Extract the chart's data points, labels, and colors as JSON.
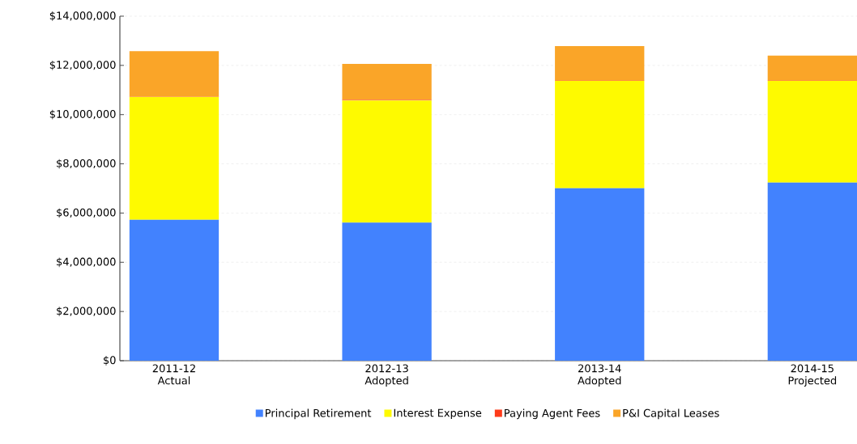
{
  "chart_data": {
    "type": "bar",
    "stacked": true,
    "categories": [
      "2011-12 Actual",
      "2012-13 Adopted",
      "2013-14 Adopted",
      "2014-15 Projected"
    ],
    "series": [
      {
        "name": "Principal Retirement",
        "color": "#4282fe",
        "values": [
          5730000,
          5610000,
          7010000,
          7240000
        ]
      },
      {
        "name": "Interest Expense",
        "color": "#fefa00",
        "values": [
          4990000,
          4960000,
          4370000,
          4140000
        ]
      },
      {
        "name": "Paying Agent Fees",
        "color": "#fe3b1a",
        "values": [
          20000,
          30000,
          20000,
          20000
        ]
      },
      {
        "name": "P&I Capital Leases",
        "color": "#faa528",
        "values": [
          1840000,
          1460000,
          1380000,
          1000000
        ]
      }
    ],
    "ylim": [
      0,
      14000000
    ],
    "yticks": [
      {
        "value": 0,
        "label": "$0"
      },
      {
        "value": 2000000,
        "label": "$2,000,000"
      },
      {
        "value": 4000000,
        "label": "$4,000,000"
      },
      {
        "value": 6000000,
        "label": "$6,000,000"
      },
      {
        "value": 8000000,
        "label": "$8,000,000"
      },
      {
        "value": 10000000,
        "label": "$10,000,000"
      },
      {
        "value": 12000000,
        "label": "$12,000,000"
      },
      {
        "value": 14000000,
        "label": "$14,000,000"
      }
    ],
    "grid": "y",
    "legend": "bottom"
  }
}
